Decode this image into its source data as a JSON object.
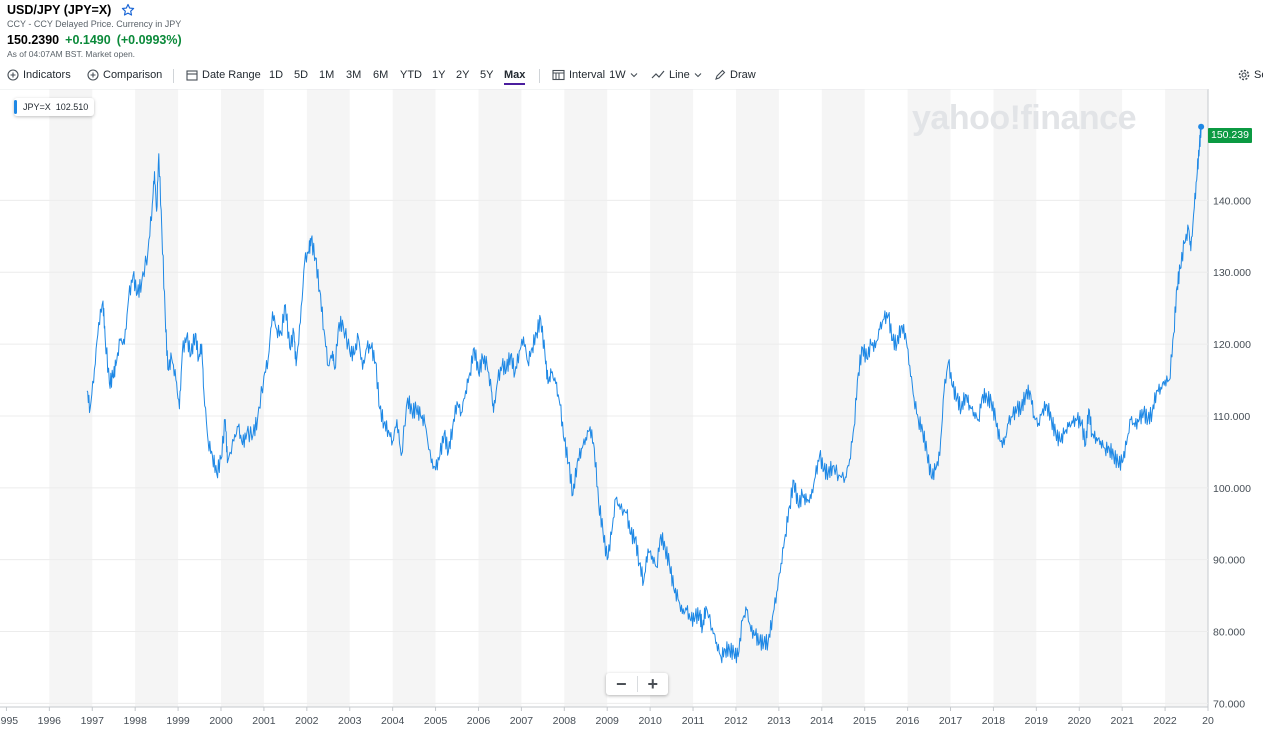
{
  "quote": {
    "title": "USD/JPY (JPY=X)",
    "subtitle": "CCY - CCY Delayed Price. Currency in JPY",
    "price": "150.2390",
    "change": "+0.1490",
    "change_pct": "(+0.0993%)",
    "as_of": "As of 04:07AM BST. Market open."
  },
  "toolbar": {
    "indicators": "Indicators",
    "comparison": "Comparison",
    "date_range": "Date Range",
    "ranges": [
      "1D",
      "5D",
      "1M",
      "3M",
      "6M",
      "YTD",
      "1Y",
      "2Y",
      "5Y",
      "Max"
    ],
    "active_range": "Max",
    "interval_label": "Interval",
    "interval_value": "1W",
    "chart_type": "Line",
    "draw": "Draw",
    "settings": "Se"
  },
  "legend": {
    "symbol": "JPY=X",
    "value": "102.510"
  },
  "last_price_tag": "150.239",
  "watermark": "yahoo!finance",
  "zoom": {
    "minus": "−",
    "plus": "+"
  },
  "colors": {
    "line": "#1e88e5",
    "up": "#0b8a3a",
    "tag": "#0b9a42",
    "band": "#f5f5f5"
  },
  "chart_data": {
    "type": "line",
    "series": [
      {
        "name": "JPY=X",
        "points": [
          [
            1996.88,
            113.5
          ],
          [
            1996.95,
            111.0
          ],
          [
            1997.05,
            116.5
          ],
          [
            1997.15,
            123.0
          ],
          [
            1997.25,
            126.0
          ],
          [
            1997.3,
            121.0
          ],
          [
            1997.4,
            114.5
          ],
          [
            1997.48,
            115.5
          ],
          [
            1997.55,
            117.0
          ],
          [
            1997.65,
            120.5
          ],
          [
            1997.75,
            120.0
          ],
          [
            1997.85,
            126.5
          ],
          [
            1997.95,
            129.5
          ],
          [
            1998.05,
            127.0
          ],
          [
            1998.15,
            128.5
          ],
          [
            1998.3,
            133.0
          ],
          [
            1998.4,
            139.5
          ],
          [
            1998.45,
            144.0
          ],
          [
            1998.5,
            138.5
          ],
          [
            1998.55,
            146.5
          ],
          [
            1998.62,
            136.0
          ],
          [
            1998.7,
            124.0
          ],
          [
            1998.76,
            116.5
          ],
          [
            1998.85,
            118.0
          ],
          [
            1998.95,
            115.0
          ],
          [
            1999.03,
            111.0
          ],
          [
            1999.1,
            119.0
          ],
          [
            1999.2,
            121.0
          ],
          [
            1999.3,
            118.5
          ],
          [
            1999.4,
            121.5
          ],
          [
            1999.48,
            118.0
          ],
          [
            1999.55,
            120.0
          ],
          [
            1999.6,
            113.5
          ],
          [
            1999.7,
            106.5
          ],
          [
            1999.8,
            104.5
          ],
          [
            1999.9,
            102.0
          ],
          [
            2000.0,
            104.0
          ],
          [
            2000.1,
            109.5
          ],
          [
            2000.15,
            103.5
          ],
          [
            2000.3,
            106.5
          ],
          [
            2000.4,
            108.5
          ],
          [
            2000.5,
            106.0
          ],
          [
            2000.6,
            107.5
          ],
          [
            2000.75,
            107.5
          ],
          [
            2000.85,
            109.5
          ],
          [
            2001.0,
            115.5
          ],
          [
            2001.1,
            118.0
          ],
          [
            2001.2,
            124.5
          ],
          [
            2001.3,
            122.0
          ],
          [
            2001.4,
            121.5
          ],
          [
            2001.5,
            125.5
          ],
          [
            2001.6,
            119.5
          ],
          [
            2001.7,
            121.5
          ],
          [
            2001.75,
            117.0
          ],
          [
            2001.85,
            123.0
          ],
          [
            2001.95,
            131.5
          ],
          [
            2002.05,
            133.0
          ],
          [
            2002.1,
            134.5
          ],
          [
            2002.2,
            132.0
          ],
          [
            2002.3,
            127.5
          ],
          [
            2002.4,
            122.0
          ],
          [
            2002.5,
            117.0
          ],
          [
            2002.6,
            119.0
          ],
          [
            2002.65,
            116.5
          ],
          [
            2002.75,
            123.0
          ],
          [
            2002.85,
            122.5
          ],
          [
            2003.0,
            119.0
          ],
          [
            2003.1,
            118.5
          ],
          [
            2003.2,
            121.0
          ],
          [
            2003.3,
            116.5
          ],
          [
            2003.4,
            119.5
          ],
          [
            2003.5,
            119.5
          ],
          [
            2003.6,
            117.5
          ],
          [
            2003.7,
            111.0
          ],
          [
            2003.8,
            109.0
          ],
          [
            2003.9,
            108.0
          ],
          [
            2004.0,
            106.5
          ],
          [
            2004.1,
            109.5
          ],
          [
            2004.2,
            104.5
          ],
          [
            2004.35,
            112.5
          ],
          [
            2004.45,
            110.5
          ],
          [
            2004.55,
            111.0
          ],
          [
            2004.65,
            110.0
          ],
          [
            2004.75,
            109.0
          ],
          [
            2004.9,
            103.5
          ],
          [
            2005.0,
            102.5
          ],
          [
            2005.1,
            104.5
          ],
          [
            2005.2,
            107.5
          ],
          [
            2005.3,
            105.0
          ],
          [
            2005.4,
            108.5
          ],
          [
            2005.5,
            112.0
          ],
          [
            2005.6,
            110.5
          ],
          [
            2005.7,
            113.5
          ],
          [
            2005.8,
            116.0
          ],
          [
            2005.9,
            119.5
          ],
          [
            2006.0,
            116.0
          ],
          [
            2006.1,
            118.0
          ],
          [
            2006.2,
            117.0
          ],
          [
            2006.3,
            113.5
          ],
          [
            2006.35,
            110.5
          ],
          [
            2006.45,
            115.0
          ],
          [
            2006.55,
            117.0
          ],
          [
            2006.65,
            116.5
          ],
          [
            2006.75,
            118.5
          ],
          [
            2006.85,
            116.0
          ],
          [
            2006.95,
            119.0
          ],
          [
            2007.05,
            121.0
          ],
          [
            2007.15,
            117.5
          ],
          [
            2007.25,
            119.5
          ],
          [
            2007.35,
            121.5
          ],
          [
            2007.45,
            123.5
          ],
          [
            2007.55,
            118.5
          ],
          [
            2007.62,
            114.5
          ],
          [
            2007.7,
            116.0
          ],
          [
            2007.8,
            114.5
          ],
          [
            2007.9,
            111.5
          ],
          [
            2008.0,
            106.5
          ],
          [
            2008.1,
            103.5
          ],
          [
            2008.2,
            99.0
          ],
          [
            2008.3,
            103.5
          ],
          [
            2008.4,
            105.5
          ],
          [
            2008.5,
            107.0
          ],
          [
            2008.6,
            108.5
          ],
          [
            2008.7,
            105.5
          ],
          [
            2008.8,
            98.0
          ],
          [
            2008.9,
            94.0
          ],
          [
            2009.0,
            90.0
          ],
          [
            2009.1,
            93.5
          ],
          [
            2009.2,
            98.5
          ],
          [
            2009.3,
            97.0
          ],
          [
            2009.45,
            96.5
          ],
          [
            2009.55,
            93.5
          ],
          [
            2009.65,
            93.0
          ],
          [
            2009.75,
            89.5
          ],
          [
            2009.85,
            87.0
          ],
          [
            2009.95,
            91.5
          ],
          [
            2010.05,
            90.5
          ],
          [
            2010.15,
            89.0
          ],
          [
            2010.25,
            93.5
          ],
          [
            2010.35,
            91.5
          ],
          [
            2010.45,
            89.5
          ],
          [
            2010.55,
            86.0
          ],
          [
            2010.65,
            84.5
          ],
          [
            2010.75,
            82.5
          ],
          [
            2010.85,
            83.0
          ],
          [
            2010.95,
            81.5
          ],
          [
            2011.05,
            82.0
          ],
          [
            2011.15,
            82.5
          ],
          [
            2011.22,
            80.5
          ],
          [
            2011.3,
            83.5
          ],
          [
            2011.45,
            80.5
          ],
          [
            2011.55,
            78.5
          ],
          [
            2011.65,
            76.5
          ],
          [
            2011.75,
            77.5
          ],
          [
            2011.85,
            77.5
          ],
          [
            2011.95,
            77.0
          ],
          [
            2012.05,
            76.5
          ],
          [
            2012.15,
            81.5
          ],
          [
            2012.25,
            83.0
          ],
          [
            2012.35,
            80.0
          ],
          [
            2012.45,
            79.5
          ],
          [
            2012.55,
            78.5
          ],
          [
            2012.65,
            78.5
          ],
          [
            2012.75,
            78.5
          ],
          [
            2012.85,
            82.0
          ],
          [
            2012.95,
            85.5
          ],
          [
            2013.05,
            89.5
          ],
          [
            2013.15,
            93.5
          ],
          [
            2013.25,
            97.5
          ],
          [
            2013.35,
            101.0
          ],
          [
            2013.45,
            97.5
          ],
          [
            2013.55,
            99.0
          ],
          [
            2013.65,
            98.0
          ],
          [
            2013.75,
            98.5
          ],
          [
            2013.85,
            101.5
          ],
          [
            2013.95,
            104.5
          ],
          [
            2014.05,
            102.5
          ],
          [
            2014.15,
            102.0
          ],
          [
            2014.25,
            103.0
          ],
          [
            2014.4,
            101.8
          ],
          [
            2014.55,
            101.5
          ],
          [
            2014.65,
            104.0
          ],
          [
            2014.75,
            108.5
          ],
          [
            2014.85,
            116.0
          ],
          [
            2014.95,
            119.5
          ],
          [
            2015.05,
            118.0
          ],
          [
            2015.15,
            120.0
          ],
          [
            2015.25,
            119.5
          ],
          [
            2015.35,
            122.0
          ],
          [
            2015.45,
            123.5
          ],
          [
            2015.55,
            124.0
          ],
          [
            2015.65,
            120.5
          ],
          [
            2015.75,
            120.0
          ],
          [
            2015.85,
            122.5
          ],
          [
            2015.95,
            121.5
          ],
          [
            2016.05,
            117.0
          ],
          [
            2016.15,
            112.5
          ],
          [
            2016.25,
            109.5
          ],
          [
            2016.35,
            108.0
          ],
          [
            2016.45,
            105.0
          ],
          [
            2016.55,
            101.5
          ],
          [
            2016.65,
            102.5
          ],
          [
            2016.75,
            104.5
          ],
          [
            2016.85,
            113.5
          ],
          [
            2016.95,
            117.5
          ],
          [
            2017.05,
            114.0
          ],
          [
            2017.15,
            112.5
          ],
          [
            2017.25,
            111.0
          ],
          [
            2017.35,
            113.0
          ],
          [
            2017.45,
            111.5
          ],
          [
            2017.55,
            110.5
          ],
          [
            2017.65,
            109.5
          ],
          [
            2017.75,
            113.0
          ],
          [
            2017.85,
            112.5
          ],
          [
            2017.95,
            112.0
          ],
          [
            2018.05,
            109.5
          ],
          [
            2018.15,
            106.5
          ],
          [
            2018.25,
            106.0
          ],
          [
            2018.35,
            109.0
          ],
          [
            2018.45,
            110.0
          ],
          [
            2018.55,
            111.0
          ],
          [
            2018.65,
            111.0
          ],
          [
            2018.75,
            113.0
          ],
          [
            2018.85,
            113.5
          ],
          [
            2018.95,
            110.0
          ],
          [
            2019.05,
            109.0
          ],
          [
            2019.15,
            111.0
          ],
          [
            2019.25,
            111.5
          ],
          [
            2019.35,
            109.5
          ],
          [
            2019.45,
            107.5
          ],
          [
            2019.55,
            106.5
          ],
          [
            2019.65,
            107.5
          ],
          [
            2019.75,
            108.5
          ],
          [
            2019.85,
            109.0
          ],
          [
            2019.95,
            109.5
          ],
          [
            2020.05,
            109.0
          ],
          [
            2020.15,
            106.0
          ],
          [
            2020.22,
            111.0
          ],
          [
            2020.3,
            107.5
          ],
          [
            2020.4,
            107.0
          ],
          [
            2020.5,
            106.5
          ],
          [
            2020.6,
            105.5
          ],
          [
            2020.7,
            105.5
          ],
          [
            2020.8,
            104.5
          ],
          [
            2020.9,
            103.5
          ],
          [
            2021.0,
            103.5
          ],
          [
            2021.1,
            106.0
          ],
          [
            2021.2,
            109.5
          ],
          [
            2021.3,
            108.5
          ],
          [
            2021.4,
            109.5
          ],
          [
            2021.5,
            110.5
          ],
          [
            2021.6,
            109.5
          ],
          [
            2021.7,
            110.5
          ],
          [
            2021.8,
            113.5
          ],
          [
            2021.9,
            114.0
          ],
          [
            2022.0,
            115.0
          ],
          [
            2022.1,
            115.0
          ],
          [
            2022.2,
            121.5
          ],
          [
            2022.28,
            128.0
          ],
          [
            2022.35,
            130.5
          ],
          [
            2022.45,
            134.0
          ],
          [
            2022.55,
            136.0
          ],
          [
            2022.6,
            133.0
          ],
          [
            2022.68,
            139.0
          ],
          [
            2022.75,
            144.0
          ],
          [
            2022.8,
            147.5
          ],
          [
            2022.84,
            150.239
          ]
        ]
      }
    ],
    "x_ticks": [
      "1995",
      "1996",
      "1997",
      "1998",
      "1999",
      "2000",
      "2001",
      "2002",
      "2003",
      "2004",
      "2005",
      "2006",
      "2007",
      "2008",
      "2009",
      "2010",
      "2011",
      "2012",
      "2013",
      "2014",
      "2015",
      "2016",
      "2017",
      "2018",
      "2019",
      "2020",
      "2021",
      "2022",
      "20"
    ],
    "y_ticks": [
      "70.000",
      "80.000",
      "90.000",
      "100.000",
      "110.000",
      "120.000",
      "130.000",
      "140.000"
    ],
    "xlim": [
      1994.85,
      2023.0
    ],
    "ylim": [
      69.5,
      155.5
    ],
    "grid": true,
    "year_bands": "alternating"
  }
}
